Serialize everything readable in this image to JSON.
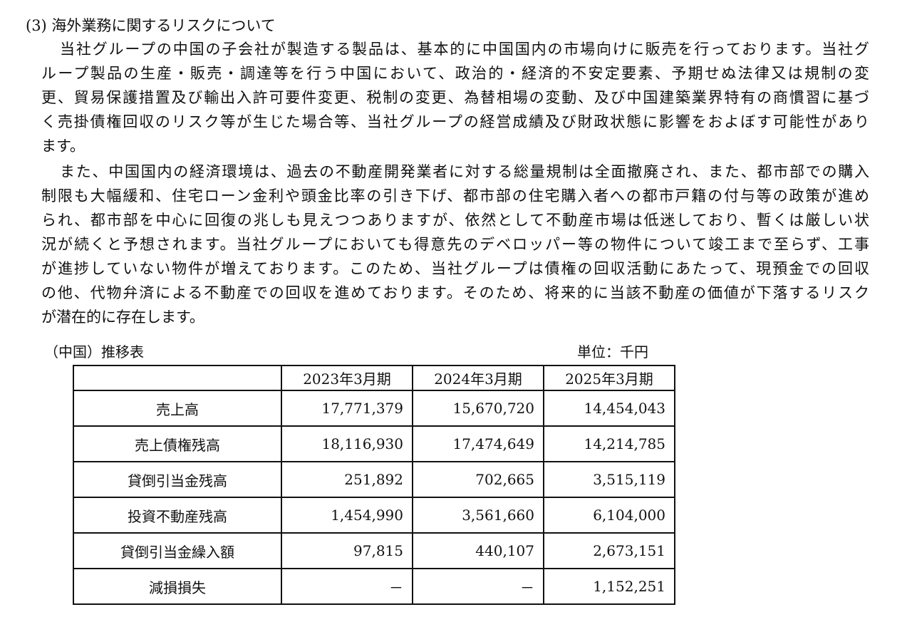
{
  "heading": "(3) 海外業務に関するリスクについて",
  "paragraph1": [
    "当社グループの中国の子会社が製造する製品は、基本的に中国国内の市場向けに販売を行っております。当社グ",
    "ループ製品の生産・販売・調達等を行う中国において、政治的・経済的不安定要素、予期せぬ法律又は規制の変",
    "更、貿易保護措置及び輸出入許可要件変更、税制の変更、為替相場の変動、及び中国建築業界特有の商慣習に基づ",
    "く売掛債権回収のリスク等が生じた場合等、当社グループの経営成績及び財政状態に影響をおよぼす可能性があり",
    "ます。"
  ],
  "paragraph2": [
    "また、中国国内の経済環境は、過去の不動産開発業者に対する総量規制は全面撤廃され、また、都市部での購入",
    "制限も大幅緩和、住宅ローン金利や頭金比率の引き下げ、都市部の住宅購入者への都市戸籍の付与等の政策が進め",
    "られ、都市部を中心に回復の兆しも見えつつありますが、依然として不動産市場は低迷しており、暫くは厳しい状",
    "況が続くと予想されます。当社グループにおいても得意先のデベロッパー等の物件について竣工まで至らず、工事",
    "が進捗していない物件が増えております。このため、当社グループは債権の回収活動にあたって、現預金での回収",
    "の他、代物弁済による不動産での回収を進めております。そのため、将来的に当該不動産の価値が下落するリスク",
    "が潜在的に存在します。"
  ],
  "table": {
    "caption": "（中国）推移表",
    "unit": "単位：千円",
    "columns": [
      "2023年3月期",
      "2024年3月期",
      "2025年3月期"
    ],
    "rows": [
      {
        "label": "売上高",
        "values": [
          "17,771,379",
          "15,670,720",
          "14,454,043"
        ]
      },
      {
        "label": "売上債権残高",
        "values": [
          "18,116,930",
          "17,474,649",
          "14,214,785"
        ]
      },
      {
        "label": "貸倒引当金残高",
        "values": [
          "251,892",
          "702,665",
          "3,515,119"
        ]
      },
      {
        "label": "投資不動産残高",
        "values": [
          "1,454,990",
          "3,561,660",
          "6,104,000"
        ]
      },
      {
        "label": "貸倒引当金繰入額",
        "values": [
          "97,815",
          "440,107",
          "2,673,151"
        ]
      },
      {
        "label": "減損損失",
        "values": [
          "－",
          "－",
          "1,152,251"
        ]
      }
    ]
  }
}
